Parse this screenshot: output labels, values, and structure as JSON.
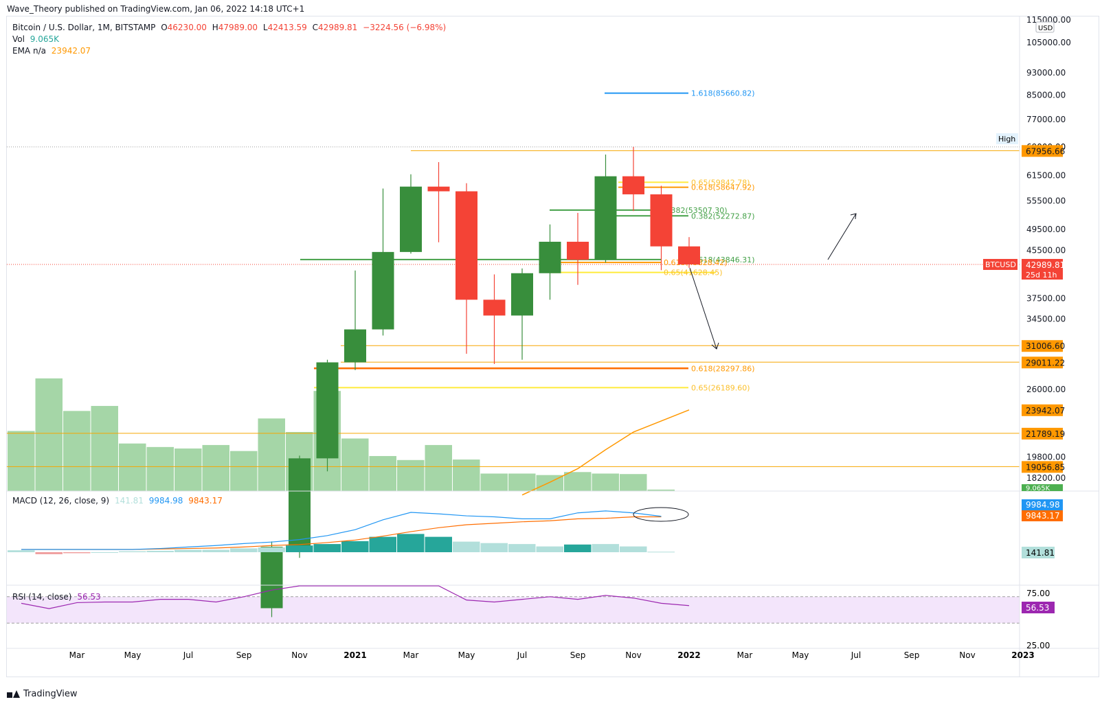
{
  "header": {
    "publisher_line": "Wave_Theory published on TradingView.com, Jan 06, 2022 14:18 UTC+1"
  },
  "legend": {
    "symbol": "Bitcoin / U.S. Dollar, 1M, BITSTAMP",
    "open_label": "O",
    "open": "46230.00",
    "high_label": "H",
    "high": "47989.00",
    "low_label": "L",
    "low": "42413.59",
    "close_label": "C",
    "close": "42989.81",
    "change": "−3224.56 (−6.98%)",
    "vol_label": "Vol",
    "vol_value": "9.065K",
    "ema_label": "EMA n/a",
    "ema_value": "23942.07",
    "macd_label": "MACD (12, 26, close, 9)",
    "macd_hist": "141.81",
    "macd_line": "9984.98",
    "macd_signal": "9843.17",
    "rsi_label": "RSI (14, close)",
    "rsi_value": "56.53"
  },
  "colors": {
    "up": "#388e3c",
    "down": "#f44336",
    "volume": "#a5d6a7",
    "ema": "#ff9800",
    "macd_line": "#2196f3",
    "macd_signal": "#ff6d00",
    "hist_strong": "#26a69a",
    "hist_weak": "#b2dfdb",
    "rsi_line": "#9c27b0",
    "rsi_band": "#f3e5fb",
    "fib_yellow": "#ffeb3b",
    "fib_orange": "#ff9800",
    "fib_green": "#43a047",
    "fib_blue": "#2196f3",
    "hline": "#f7a600"
  },
  "price_axis": {
    "currency": "USD",
    "ticks": [
      "115000.00",
      "105000.00",
      "93000.00",
      "85000.00",
      "77000.00",
      "61500.00",
      "55500.00",
      "49500.00",
      "45500.00",
      "37500.00",
      "34500.00",
      "26000.00",
      "19800.00",
      "18200.00"
    ],
    "badges": [
      {
        "text": "67956.66",
        "kind": "line"
      },
      {
        "text": "31006.60",
        "kind": "line"
      },
      {
        "text": "29011.22",
        "kind": "line"
      },
      {
        "text": "23942.07",
        "kind": "ema"
      },
      {
        "text": "21789.19",
        "kind": "line"
      },
      {
        "text": "19056.85",
        "kind": "line"
      }
    ],
    "high_label": "High",
    "high_value": "69000.00",
    "current_symbol": "BTCUSD",
    "current_price": "42989.81",
    "countdown": "25d 11h",
    "vol_badge": "9.065K"
  },
  "macd_axis": {
    "line_badge": "9984.98",
    "signal_badge": "9843.17",
    "hist_badge": "141.81"
  },
  "rsi_axis": {
    "ticks": [
      "75.00",
      "25.00"
    ],
    "badge": "56.53"
  },
  "time_axis": {
    "labels": [
      "Mar",
      "May",
      "Jul",
      "Sep",
      "Nov",
      "2021",
      "Mar",
      "May",
      "Jul",
      "Sep",
      "Nov",
      "2022",
      "Mar",
      "May",
      "Jul",
      "Sep",
      "Nov",
      "2023"
    ]
  },
  "fib_labels": [
    {
      "text": "1.618(85660.82)",
      "color": "blue"
    },
    {
      "text": "0.65(59842.78)",
      "color": "yellow"
    },
    {
      "text": "0.618(58647.92)",
      "color": "orange"
    },
    {
      "text": "0.382(53507.30)",
      "color": "green"
    },
    {
      "text": "0.382(52272.87)",
      "color": "green"
    },
    {
      "text": "0.618(43846.31)",
      "color": "green"
    },
    {
      "text": "0.618(43328.42)",
      "color": "orange"
    },
    {
      "text": "0.65(41628.45)",
      "color": "yellow"
    },
    {
      "text": "0.618(28297.86)",
      "color": "orange"
    },
    {
      "text": "0.65(26189.60)",
      "color": "yellow"
    }
  ],
  "chart_data": {
    "type": "candlestick",
    "symbol": "Bitcoin / U.S. Dollar",
    "timeframe": "1M",
    "exchange": "BITSTAMP",
    "price_scale": "log",
    "ylim": [
      17000,
      118000
    ],
    "candles": [
      {
        "t": "2020-10",
        "o": 10780,
        "h": 14100,
        "l": 10400,
        "c": 13800
      },
      {
        "t": "2020-11",
        "o": 13800,
        "h": 19920,
        "l": 13200,
        "c": 19700
      },
      {
        "t": "2020-12",
        "o": 19700,
        "h": 29300,
        "l": 18700,
        "c": 28990
      },
      {
        "t": "2021-01",
        "o": 28990,
        "h": 41950,
        "l": 28100,
        "c": 33100
      },
      {
        "t": "2021-02",
        "o": 33100,
        "h": 58350,
        "l": 32300,
        "c": 45200
      },
      {
        "t": "2021-03",
        "o": 45200,
        "h": 61790,
        "l": 44900,
        "c": 58800
      },
      {
        "t": "2021-04",
        "o": 58800,
        "h": 64890,
        "l": 47000,
        "c": 57700
      },
      {
        "t": "2021-05",
        "o": 57700,
        "h": 59600,
        "l": 30000,
        "c": 37300
      },
      {
        "t": "2021-06",
        "o": 37300,
        "h": 41300,
        "l": 28800,
        "c": 35000
      },
      {
        "t": "2021-07",
        "o": 35000,
        "h": 42300,
        "l": 29300,
        "c": 41500
      },
      {
        "t": "2021-08",
        "o": 41500,
        "h": 50500,
        "l": 37300,
        "c": 47100
      },
      {
        "t": "2021-09",
        "o": 47100,
        "h": 52900,
        "l": 39600,
        "c": 43800
      },
      {
        "t": "2021-10",
        "o": 43800,
        "h": 66900,
        "l": 43300,
        "c": 61300
      },
      {
        "t": "2021-11",
        "o": 61300,
        "h": 69000,
        "l": 53300,
        "c": 57000
      },
      {
        "t": "2021-12",
        "o": 57000,
        "h": 59000,
        "l": 42000,
        "c": 46230
      },
      {
        "t": "2022-01",
        "o": 46230,
        "h": 47989,
        "l": 42413.59,
        "c": 42989.81
      }
    ],
    "volume": {
      "dates": [
        "2020-01",
        "2020-02",
        "2020-03",
        "2020-04",
        "2020-05",
        "2020-06",
        "2020-07",
        "2020-08",
        "2020-09",
        "2020-10",
        "2020-11",
        "2020-12",
        "2021-01",
        "2021-02",
        "2021-03",
        "2021-04",
        "2021-05",
        "2021-06",
        "2021-07",
        "2021-08",
        "2021-09",
        "2021-10",
        "2021-11",
        "2021-12",
        "2022-01"
      ],
      "values": [
        120,
        225,
        160,
        170,
        95,
        88,
        85,
        92,
        80,
        145,
        118,
        200,
        105,
        70,
        62,
        92,
        63,
        35,
        35,
        32,
        38,
        35,
        34,
        3,
        0
      ]
    },
    "ema": [
      {
        "t": "2021-07",
        "v": 17000
      },
      {
        "t": "2021-08",
        "v": 17900
      },
      {
        "t": "2021-09",
        "v": 18900
      },
      {
        "t": "2021-10",
        "v": 20400
      },
      {
        "t": "2021-11",
        "v": 21900
      },
      {
        "t": "2021-12",
        "v": 22900
      },
      {
        "t": "2022-01",
        "v": 23942.07
      }
    ],
    "horizontal_levels": [
      67956.66,
      31006.6,
      29011.22,
      21789.19,
      19056.85
    ],
    "high_marker": 69000,
    "macd": {
      "hist": [
        0.04,
        -0.04,
        -0.02,
        0.0,
        0.02,
        0.03,
        0.05,
        0.05,
        0.08,
        0.1,
        0.14,
        0.17,
        0.23,
        0.32,
        0.38,
        0.32,
        0.22,
        0.19,
        0.17,
        0.12,
        0.16,
        0.17,
        0.12,
        0.01
      ],
      "line": [
        0.0,
        0.0,
        0.0,
        0.0,
        0.0,
        0.02,
        0.05,
        0.08,
        0.12,
        0.15,
        0.2,
        0.28,
        0.4,
        0.6,
        0.75,
        0.72,
        0.68,
        0.66,
        0.62,
        0.62,
        0.74,
        0.78,
        0.74,
        0.67
      ],
      "signal": [
        0.0,
        0.0,
        0.0,
        0.0,
        0.0,
        0.01,
        0.02,
        0.03,
        0.05,
        0.08,
        0.1,
        0.14,
        0.19,
        0.27,
        0.36,
        0.44,
        0.5,
        0.53,
        0.56,
        0.58,
        0.62,
        0.63,
        0.66,
        0.66
      ]
    },
    "rsi": {
      "values": [
        60,
        52,
        61,
        62,
        62,
        66,
        66,
        62,
        70,
        80,
        88,
        99,
        99,
        99,
        99,
        92,
        65,
        62,
        66,
        70,
        66,
        72,
        68,
        60,
        56.53
      ],
      "overbought": 70,
      "oversold": 30
    }
  }
}
